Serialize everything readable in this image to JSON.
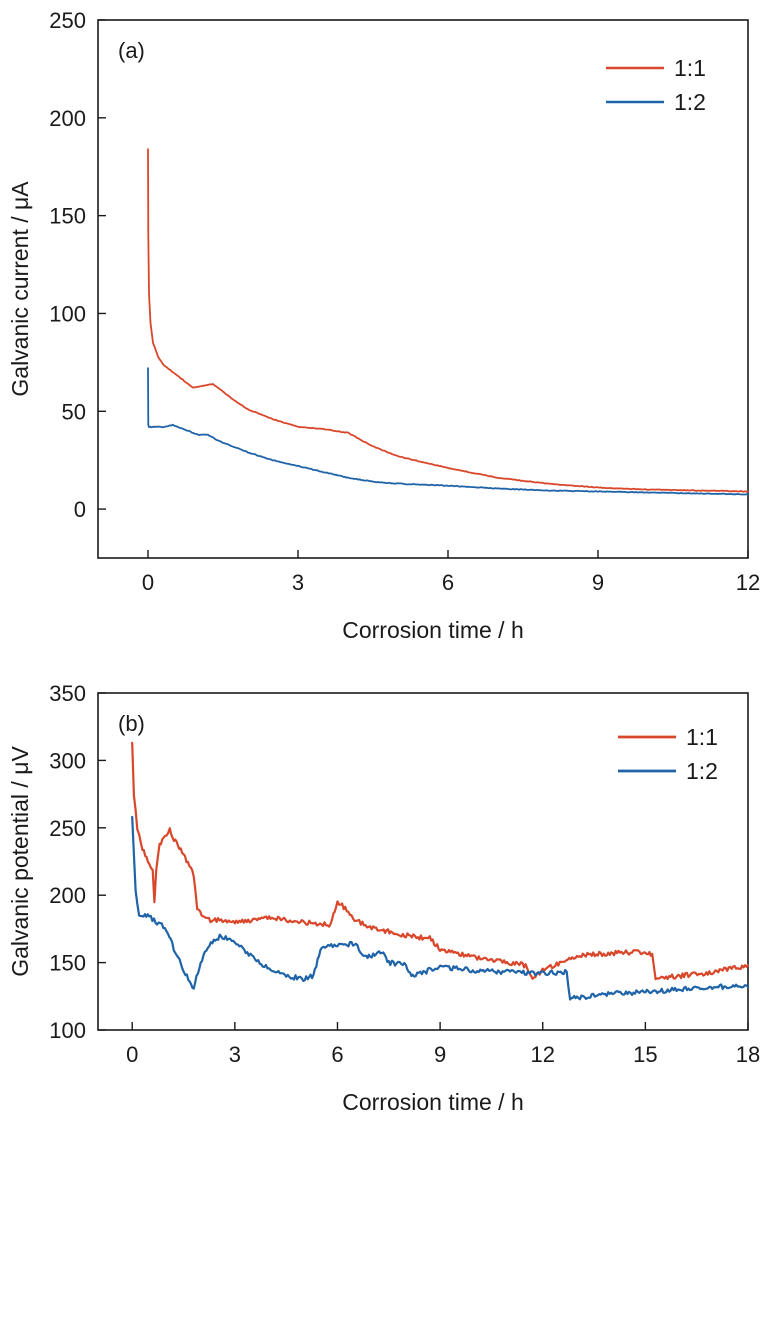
{
  "chart_data": [
    {
      "type": "line",
      "panel_label": "(a)",
      "xlabel": "Corrosion time / h",
      "ylabel": "Galvanic current / μA",
      "xlim": [
        -1,
        12
      ],
      "ylim": [
        -25,
        250
      ],
      "xticks": [
        0,
        3,
        6,
        9,
        12
      ],
      "yticks": [
        0,
        50,
        100,
        150,
        200,
        250
      ],
      "legend_position": "top-right",
      "grid": false,
      "series": [
        {
          "name": "1:1",
          "color": "#d9472b",
          "x": [
            0,
            0.005,
            0.02,
            0.05,
            0.1,
            0.2,
            0.3,
            0.5,
            0.7,
            0.9,
            1.1,
            1.3,
            1.5,
            1.7,
            2.0,
            2.5,
            3.0,
            3.5,
            4.0,
            4.5,
            5.0,
            6.0,
            7.0,
            8.0,
            9.0,
            10.0,
            11.0,
            12.0
          ],
          "y": [
            184,
            140,
            110,
            95,
            85,
            78,
            74,
            70,
            66,
            62,
            63,
            64,
            60,
            56,
            51,
            46,
            42,
            41,
            39,
            32,
            27,
            21,
            16,
            13,
            11,
            10,
            9.5,
            9
          ]
        },
        {
          "name": "1:2",
          "color": "#1f63a8",
          "x": [
            0,
            0.005,
            0.02,
            0.1,
            0.3,
            0.5,
            0.7,
            1.0,
            1.2,
            1.4,
            1.7,
            2.0,
            2.5,
            3.0,
            3.5,
            4.0,
            4.5,
            5.0,
            6.0,
            7.0,
            8.0,
            9.0,
            10.0,
            11.0,
            12.0
          ],
          "y": [
            72,
            43,
            42,
            42,
            42,
            43,
            41,
            38,
            38,
            35,
            32,
            29,
            25,
            22,
            19,
            16,
            14,
            13,
            12,
            10.5,
            9.5,
            9,
            8.5,
            8,
            7.5
          ]
        }
      ]
    },
    {
      "type": "line",
      "panel_label": "(b)",
      "xlabel": "Corrosion time / h",
      "ylabel": "Galvanic potential / μV",
      "xlim": [
        -1,
        18
      ],
      "ylim": [
        100,
        350
      ],
      "xticks": [
        0,
        3,
        6,
        9,
        12,
        15,
        18
      ],
      "yticks": [
        100,
        150,
        200,
        250,
        300,
        350
      ],
      "legend_position": "top-right",
      "grid": false,
      "series": [
        {
          "name": "1:1",
          "color": "#d9472b",
          "x": [
            0,
            0.05,
            0.15,
            0.3,
            0.5,
            0.6,
            0.65,
            0.7,
            0.8,
            1.0,
            1.1,
            1.3,
            1.5,
            1.8,
            1.9,
            2.2,
            3.0,
            4.0,
            5.0,
            5.8,
            6.0,
            6.5,
            7.0,
            8.0,
            8.7,
            9.0,
            10.0,
            11.0,
            11.5,
            11.7,
            12.0,
            12.5,
            13.0,
            14.0,
            15.0,
            15.2,
            15.3,
            16.0,
            17.0,
            18.0
          ],
          "y": [
            313,
            275,
            250,
            235,
            222,
            220,
            195,
            218,
            238,
            244,
            248,
            238,
            230,
            215,
            190,
            182,
            180,
            183,
            180,
            178,
            196,
            182,
            176,
            170,
            168,
            160,
            154,
            150,
            148,
            138,
            144,
            150,
            155,
            157,
            158,
            155,
            139,
            140,
            143,
            148
          ]
        },
        {
          "name": "1:2",
          "color": "#1f63a8",
          "x": [
            0,
            0.05,
            0.1,
            0.15,
            0.2,
            0.5,
            1.0,
            1.3,
            1.6,
            1.8,
            2.0,
            2.3,
            2.6,
            3.0,
            3.5,
            4.0,
            4.5,
            5.0,
            5.3,
            5.5,
            6.0,
            6.5,
            6.8,
            7.0,
            7.3,
            7.5,
            8.0,
            8.2,
            9.0,
            10.0,
            11.0,
            12.0,
            12.7,
            12.8,
            13.0,
            14.0,
            15.0,
            16.0,
            17.0,
            18.0
          ],
          "y": [
            258,
            230,
            205,
            192,
            186,
            184,
            175,
            155,
            140,
            131,
            150,
            165,
            170,
            165,
            155,
            145,
            140,
            138,
            140,
            160,
            163,
            164,
            155,
            155,
            158,
            150,
            148,
            140,
            147,
            144,
            143,
            142,
            143,
            124,
            124,
            127,
            128,
            130,
            132,
            132
          ]
        }
      ]
    }
  ]
}
